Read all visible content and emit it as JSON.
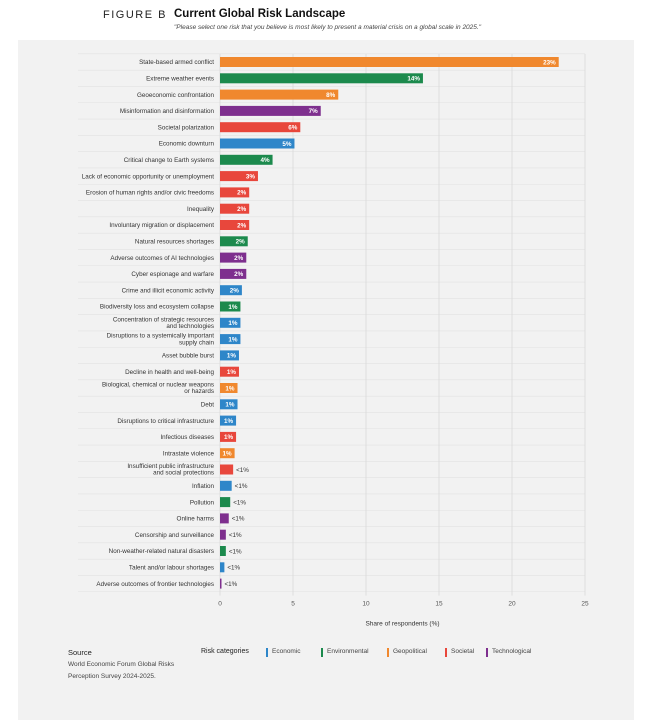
{
  "header": {
    "figure_label": "FIGURE B",
    "title": "Current Global Risk Landscape",
    "subtitle": "\"Please select one risk that you believe is most likely to present a material crisis on a global scale in 2025.\""
  },
  "colors": {
    "Economic": "#2e86c9",
    "Environmental": "#1c8a4d",
    "Geopolitical": "#f0882e",
    "Societal": "#e8473c",
    "Technological": "#7e2f8e"
  },
  "chart_data": {
    "type": "bar",
    "orientation": "horizontal",
    "xlabel": "Share of respondents (%)",
    "xlim": [
      0,
      25
    ],
    "xticks": [
      0,
      5,
      10,
      15,
      20,
      25
    ],
    "grid": true,
    "categories": [
      "State-based armed conflict",
      "Extreme weather events",
      "Geoeconomic confrontation",
      "Misinformation and disinformation",
      "Societal polarization",
      "Economic downturn",
      "Critical change to Earth systems",
      "Lack of economic opportunity or unemployment",
      "Erosion of human rights and/or civic freedoms",
      "Inequality",
      "Involuntary migration or displacement",
      "Natural resources shortages",
      "Adverse outcomes of AI technologies",
      "Cyber espionage and warfare",
      "Crime and illicit economic activity",
      "Biodiversity loss and ecosystem collapse",
      "Concentration of strategic resources and technologies",
      "Disruptions to a systemically important supply chain",
      "Asset bubble burst",
      "Decline in health and well-being",
      "Biological, chemical or nuclear weapons or hazards",
      "Debt",
      "Disruptions to critical infrastructure",
      "Infectious diseases",
      "Intrastate violence",
      "Insufficient public infrastructure and social protections",
      "Inflation",
      "Pollution",
      "Online harms",
      "Censorship and surveillance",
      "Non-weather-related natural disasters",
      "Talent and/or labour shortages",
      "Adverse outcomes of frontier technologies"
    ],
    "label_lines": [
      [
        "State-based armed conflict"
      ],
      [
        "Extreme weather events"
      ],
      [
        "Geoeconomic confrontation"
      ],
      [
        "Misinformation and disinformation"
      ],
      [
        "Societal polarization"
      ],
      [
        "Economic downturn"
      ],
      [
        "Critical change to Earth systems"
      ],
      [
        "Lack of economic opportunity or unemployment"
      ],
      [
        "Erosion of human rights and/or civic freedoms"
      ],
      [
        "Inequality"
      ],
      [
        "Involuntary migration or displacement"
      ],
      [
        "Natural resources shortages"
      ],
      [
        "Adverse outcomes of AI technologies"
      ],
      [
        "Cyber espionage and warfare"
      ],
      [
        "Crime and illicit economic activity"
      ],
      [
        "Biodiversity loss and ecosystem collapse"
      ],
      [
        "Concentration of strategic resources",
        "and technologies"
      ],
      [
        "Disruptions to a systemically important",
        "supply chain"
      ],
      [
        "Asset bubble burst"
      ],
      [
        "Decline in health and well-being"
      ],
      [
        "Biological, chemical or nuclear weapons",
        "or hazards"
      ],
      [
        "Debt"
      ],
      [
        "Disruptions to critical infrastructure"
      ],
      [
        "Infectious diseases"
      ],
      [
        "Intrastate violence"
      ],
      [
        "Insufficient public infrastructure",
        "and social protections"
      ],
      [
        "Inflation"
      ],
      [
        "Pollution"
      ],
      [
        "Online harms"
      ],
      [
        "Censorship and surveillance"
      ],
      [
        "Non-weather-related natural disasters"
      ],
      [
        "Talent and/or labour shortages"
      ],
      [
        "Adverse outcomes of frontier technologies"
      ]
    ],
    "values": [
      23.2,
      13.9,
      8.1,
      6.9,
      5.5,
      5.1,
      3.6,
      2.6,
      2.0,
      2.0,
      2.0,
      1.9,
      1.8,
      1.8,
      1.5,
      1.4,
      1.4,
      1.4,
      1.3,
      1.3,
      1.2,
      1.2,
      1.1,
      1.1,
      1.0,
      0.9,
      0.8,
      0.7,
      0.6,
      0.4,
      0.4,
      0.3,
      0.1
    ],
    "value_labels": [
      "23%",
      "14%",
      "8%",
      "7%",
      "6%",
      "5%",
      "4%",
      "3%",
      "2%",
      "2%",
      "2%",
      "2%",
      "2%",
      "2%",
      "2%",
      "1%",
      "1%",
      "1%",
      "1%",
      "1%",
      "1%",
      "1%",
      "1%",
      "1%",
      "1%",
      "<1%",
      "<1%",
      "<1%",
      "<1%",
      "<1%",
      "<1%",
      "<1%",
      "<1%"
    ],
    "risk_category": [
      "Geopolitical",
      "Environmental",
      "Geopolitical",
      "Technological",
      "Societal",
      "Economic",
      "Environmental",
      "Societal",
      "Societal",
      "Societal",
      "Societal",
      "Environmental",
      "Technological",
      "Technological",
      "Economic",
      "Environmental",
      "Economic",
      "Economic",
      "Economic",
      "Societal",
      "Geopolitical",
      "Economic",
      "Economic",
      "Societal",
      "Geopolitical",
      "Societal",
      "Economic",
      "Environmental",
      "Technological",
      "Technological",
      "Environmental",
      "Economic",
      "Technological"
    ]
  },
  "footer": {
    "source_title": "Source",
    "source_text": "World Economic Forum Global Risks Perception Survey 2024-2025.",
    "legend_title": "Risk categories",
    "legend": [
      {
        "name": "Economic",
        "color": "#2e86c9"
      },
      {
        "name": "Environmental",
        "color": "#1c8a4d"
      },
      {
        "name": "Geopolitical",
        "color": "#f0882e"
      },
      {
        "name": "Societal",
        "color": "#e8473c"
      },
      {
        "name": "Technological",
        "color": "#7e2f8e"
      }
    ]
  }
}
